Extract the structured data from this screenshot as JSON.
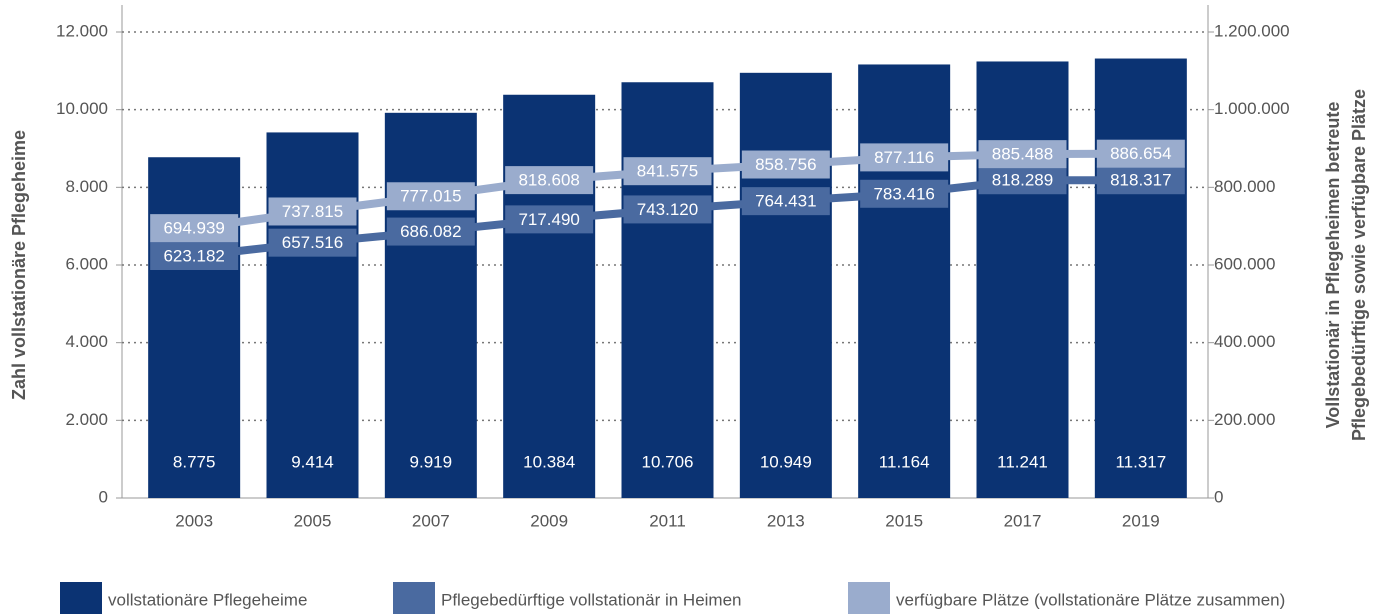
{
  "chart_data": {
    "type": "bar_line",
    "ylabel": "Zahl vollstationäre Pflegeheime",
    "y2label": [
      "Vollstationär in Pflegeheimen betreute",
      "Pflegebedürftige sowie verfügbare Plätze"
    ],
    "categories": [
      "2003",
      "2005",
      "2007",
      "2009",
      "2011",
      "2013",
      "2015",
      "2017",
      "2019"
    ],
    "ylim": [
      0,
      12000
    ],
    "yticks": [
      0,
      {
        "value": 2000,
        "label": "2.000"
      },
      {
        "value": 4000,
        "label": "4.000"
      },
      {
        "value": 6000,
        "label": "6.000"
      },
      {
        "value": 8000,
        "label": "8.000"
      },
      {
        "value": 10000,
        "label": "10.000"
      },
      {
        "value": 12000,
        "label": "12.000"
      }
    ],
    "y2lim": [
      0,
      1200000
    ],
    "y2ticks": [
      0,
      {
        "value": 200000,
        "label": "200.000"
      },
      {
        "value": 400000,
        "label": "400.000"
      },
      {
        "value": 600000,
        "label": "600.000"
      },
      {
        "value": 800000,
        "label": "800.000"
      },
      {
        "value": 1000000,
        "label": "1.000.000"
      },
      {
        "value": 1200000,
        "label": "1.200.000"
      }
    ],
    "grid": true,
    "series": [
      {
        "name": "vollstationäre Pflegeheime",
        "type": "bar",
        "color": "#0b3373",
        "values": [
          8775,
          9414,
          9919,
          10384,
          10706,
          10949,
          11164,
          11241,
          11317
        ],
        "value_labels": [
          "8.775",
          "9.414",
          "9.919",
          "10.384",
          "10.706",
          "10.949",
          "11.164",
          "11.241",
          "11.317"
        ]
      },
      {
        "name": "Pflegebedürftige vollstationär in Heimen",
        "type": "line",
        "axis": "y2",
        "color": "#4a6aa0",
        "values": [
          623182,
          657516,
          686082,
          717490,
          743120,
          764431,
          783416,
          818289,
          818317
        ],
        "value_labels": [
          "623.182",
          "657.516",
          "686.082",
          "717.490",
          "743.120",
          "764.431",
          "783.416",
          "818.289",
          "818.317"
        ]
      },
      {
        "name": "verfügbare Plätze (vollstationäre Plätze zusammen)",
        "type": "line",
        "axis": "y2",
        "color": "#9aaccd",
        "values": [
          694939,
          737815,
          777015,
          818608,
          841575,
          858756,
          877116,
          885488,
          886654
        ],
        "value_labels": [
          "694.939",
          "737.815",
          "777.015",
          "818.608",
          "841.575",
          "858.756",
          "877.116",
          "885.488",
          "886.654"
        ]
      }
    ]
  }
}
